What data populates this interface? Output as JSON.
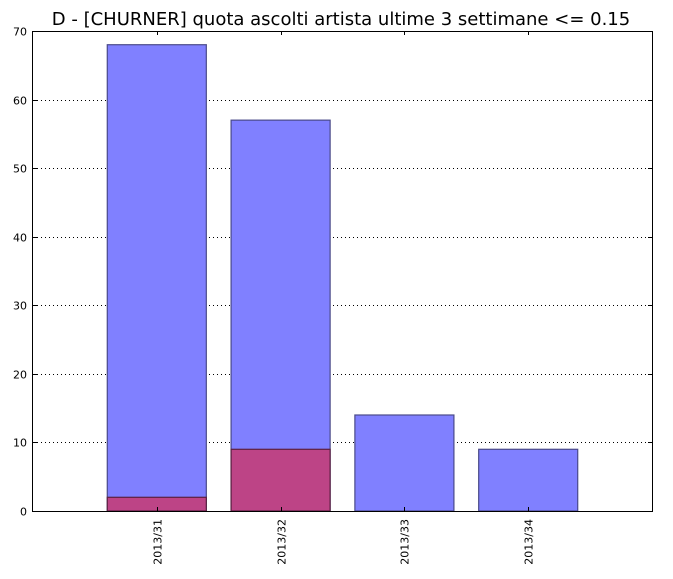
{
  "chart_data": {
    "type": "bar",
    "title": "D - [CHURNER] quota ascolti artista ultime 3 settimane <= 0.15",
    "xlabel": "",
    "ylabel": "",
    "categories": [
      "2013/31",
      "2013/32",
      "2013/33",
      "2013/34"
    ],
    "series": [
      {
        "values": [
          68,
          57,
          14,
          9
        ],
        "color": "#8080ff"
      },
      {
        "values": [
          2,
          9,
          0,
          0
        ],
        "color": "#c0407f"
      }
    ],
    "ylim": [
      0,
      70
    ],
    "yticks": [
      0,
      10,
      20,
      30,
      40,
      50,
      60,
      70
    ],
    "grid": "y-dotted",
    "overlay": true
  }
}
